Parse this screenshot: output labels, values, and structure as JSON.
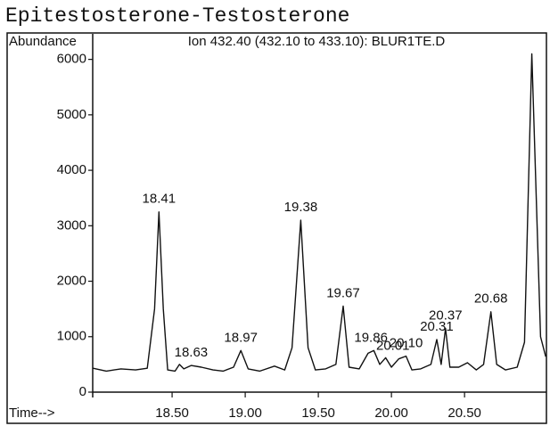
{
  "chart_data": {
    "type": "line",
    "title": "Epitestosterone-Testosterone",
    "subtitle": "Ion 432.40 (432.10 to 433.10): BLUR1TE.D",
    "y_label": "Abundance",
    "x_label": "Time-->",
    "xlim": [
      17.957,
      21.06
    ],
    "ylim": [
      0,
      6460
    ],
    "xticks": [
      {
        "value": 18.5,
        "label": "18.50"
      },
      {
        "value": 19.0,
        "label": "19.00"
      },
      {
        "value": 19.5,
        "label": "19.50"
      },
      {
        "value": 20.0,
        "label": "20.00"
      },
      {
        "value": 20.5,
        "label": "20.50"
      }
    ],
    "yticks": [
      0,
      1000,
      2000,
      3000,
      4000,
      5000,
      6000
    ],
    "grid": false,
    "series": [
      {
        "color": "#111111",
        "x": [
          17.96,
          17.98,
          18.05,
          18.15,
          18.25,
          18.33,
          18.38,
          18.41,
          18.44,
          18.47,
          18.52,
          18.55,
          18.58,
          18.63,
          18.7,
          18.78,
          18.85,
          18.92,
          18.97,
          19.02,
          19.1,
          19.2,
          19.27,
          19.32,
          19.38,
          19.43,
          19.48,
          19.55,
          19.62,
          19.67,
          19.71,
          19.78,
          19.84,
          19.88,
          19.92,
          19.96,
          20.0,
          20.05,
          20.1,
          20.14,
          20.2,
          20.27,
          20.31,
          20.34,
          20.37,
          20.4,
          20.46,
          20.52,
          20.58,
          20.63,
          20.68,
          20.72,
          20.78,
          20.86,
          20.91,
          20.96,
          21.02,
          21.055
        ],
        "values": [
          430,
          420,
          380,
          420,
          400,
          430,
          1500,
          3250,
          1500,
          400,
          380,
          500,
          420,
          480,
          450,
          400,
          380,
          450,
          750,
          420,
          380,
          470,
          400,
          800,
          3100,
          800,
          400,
          420,
          500,
          1550,
          450,
          420,
          700,
          750,
          500,
          620,
          450,
          600,
          650,
          400,
          420,
          500,
          950,
          500,
          1150,
          450,
          450,
          530,
          400,
          500,
          1450,
          500,
          400,
          450,
          900,
          6100,
          1000,
          640
        ]
      }
    ],
    "peaks": [
      {
        "label": "18.41",
        "x": 18.41,
        "y": 3250
      },
      {
        "label": "18.63",
        "x": 18.63,
        "y": 480
      },
      {
        "label": "18.97",
        "x": 18.97,
        "y": 750
      },
      {
        "label": "19.38",
        "x": 19.38,
        "y": 3100
      },
      {
        "label": "19.67",
        "x": 19.67,
        "y": 1550
      },
      {
        "label": "19.86",
        "x": 19.86,
        "y": 750
      },
      {
        "label": "20.01",
        "x": 20.01,
        "y": 600
      },
      {
        "label": "20.10",
        "x": 20.1,
        "y": 650
      },
      {
        "label": "20.31",
        "x": 20.31,
        "y": 950
      },
      {
        "label": "20.37",
        "x": 20.37,
        "y": 1150
      },
      {
        "label": "20.68",
        "x": 20.68,
        "y": 1450
      }
    ]
  }
}
